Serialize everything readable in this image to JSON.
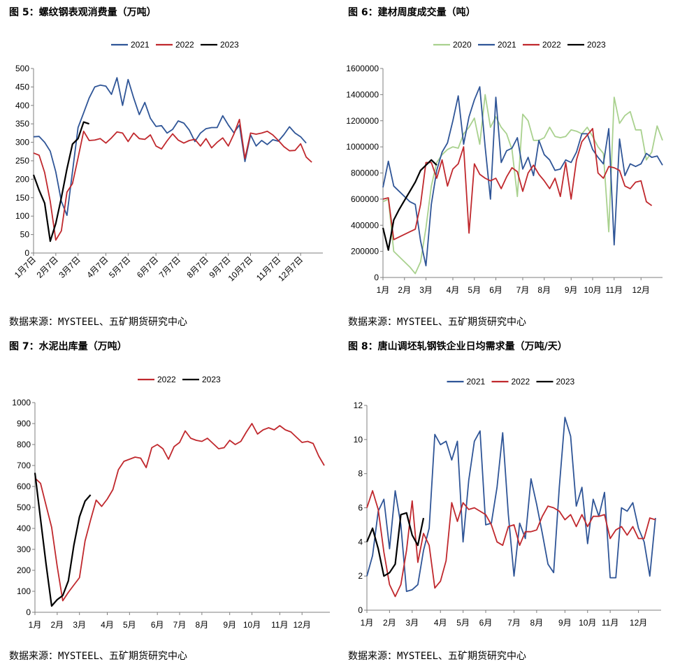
{
  "panels": [
    {
      "title": "图 5：螺纹钢表观消费量（万吨）",
      "source": "数据来源：MYSTEEL、五矿期货研究中心"
    },
    {
      "title": "图 6：建材周度成交量（吨）",
      "source": "数据来源：MYSTEEL、五矿期货研究中心"
    },
    {
      "title": "图 7：水泥出库量（万吨）",
      "source": "数据来源：MYSTEEL、五矿期货研究中心"
    },
    {
      "title": "图 8：唐山调坯轧钢铁企业日均需求量（万吨/天）",
      "source": "数据来源：MYSTEEL、五矿期货研究中心"
    }
  ],
  "chart_data": [
    {
      "type": "line",
      "ylim": [
        0,
        500
      ],
      "yticks": [
        0,
        50,
        100,
        150,
        200,
        250,
        300,
        350,
        400,
        450,
        500
      ],
      "xlim": [
        1,
        53
      ],
      "xticks": [
        1,
        5,
        9,
        14,
        18,
        23,
        27,
        32,
        36,
        40,
        45,
        49
      ],
      "xticklabels": [
        "1月7日",
        "2月7日",
        "3月7日",
        "4月7日",
        "5月7日",
        "6月7日",
        "7月7日",
        "8月7日",
        "9月7日",
        "10月7日",
        "11月7日",
        "12月7日"
      ],
      "xtick_rotation": -45,
      "grid": false,
      "legend": "top-center",
      "series": [
        {
          "name": "2021",
          "color": "#2f5597",
          "values": [
            315,
            316,
            300,
            276,
            220,
            140,
            102,
            220,
            340,
            380,
            420,
            450,
            455,
            452,
            430,
            475,
            400,
            470,
            420,
            375,
            408,
            365,
            343,
            345,
            325,
            335,
            358,
            352,
            333,
            302,
            325,
            337,
            340,
            340,
            372,
            347,
            326,
            347,
            248,
            320,
            290,
            305,
            294,
            307,
            303,
            321,
            342,
            325,
            315,
            298
          ]
        },
        {
          "name": "2022",
          "color": "#c0282d",
          "values": [
            271,
            265,
            218,
            140,
            35,
            60,
            165,
            188,
            258,
            330,
            305,
            306,
            310,
            298,
            312,
            328,
            325,
            302,
            325,
            310,
            308,
            320,
            290,
            282,
            304,
            323,
            306,
            298,
            305,
            308,
            290,
            310,
            285,
            300,
            312,
            290,
            322,
            362,
            256,
            325,
            322,
            325,
            330,
            320,
            305,
            288,
            277,
            278,
            296,
            260,
            246
          ]
        },
        {
          "name": "2023",
          "color": "#000000",
          "values": [
            212,
            170,
            135,
            32,
            80,
            150,
            228,
            295,
            310,
            355,
            350
          ]
        }
      ]
    },
    {
      "type": "line",
      "ylim": [
        0,
        1600000
      ],
      "yticks": [
        0,
        200000,
        400000,
        600000,
        800000,
        1000000,
        1200000,
        1400000,
        1600000
      ],
      "xlim": [
        1,
        53
      ],
      "xticks": [
        1,
        5,
        9,
        14,
        18,
        22,
        27,
        31,
        36,
        40,
        44,
        49
      ],
      "xticklabels": [
        "1月",
        "2月",
        "3月",
        "4月",
        "5月",
        "6月",
        "7月",
        "8月",
        "9月",
        "10月",
        "11月",
        "12月"
      ],
      "grid": false,
      "legend": "top-center",
      "series": [
        {
          "name": "2020",
          "color": "#a9d18e",
          "values": [
            580,
            600,
            200,
            160,
            120,
            80,
            30,
            120,
            380,
            700,
            880,
            940,
            980,
            1000,
            990,
            1100,
            1150,
            1220,
            1020,
            1400,
            1150,
            1230,
            1150,
            1100,
            980,
            620,
            1250,
            1200,
            1050,
            1050,
            1070,
            1150,
            1080,
            1070,
            1080,
            1130,
            1120,
            1100,
            1150,
            1080,
            1000,
            950,
            350,
            1380,
            1180,
            1240,
            1270,
            1130,
            1130,
            900,
            960,
            1160,
            1050
          ]
        },
        {
          "name": "2021",
          "color": "#2f5597",
          "values": [
            690,
            890,
            700,
            660,
            620,
            580,
            560,
            280,
            90,
            560,
            820,
            960,
            1030,
            1200,
            1390,
            1020,
            1230,
            1360,
            1460,
            1000,
            600,
            1380,
            880,
            970,
            990,
            1070,
            830,
            920,
            780,
            1050,
            940,
            900,
            820,
            830,
            900,
            880,
            960,
            1100,
            1100,
            980,
            920,
            870,
            1140,
            250,
            1060,
            780,
            870,
            850,
            870,
            950,
            920,
            930,
            860
          ]
        },
        {
          "name": "2022",
          "color": "#c0282d",
          "values": [
            600,
            610,
            290,
            310,
            330,
            350,
            370,
            560,
            880,
            880,
            760,
            900,
            700,
            830,
            870,
            1000,
            340,
            870,
            790,
            760,
            740,
            760,
            680,
            770,
            840,
            810,
            660,
            800,
            860,
            790,
            740,
            680,
            760,
            620,
            880,
            600,
            900,
            1040,
            1090,
            1140,
            800,
            760,
            850,
            840,
            820,
            700,
            680,
            730,
            740,
            580,
            550
          ]
        },
        {
          "name": "2023",
          "color": "#000000",
          "values": [
            380,
            210,
            440,
            520,
            590,
            660,
            730,
            820,
            860,
            900,
            860
          ]
        }
      ]
    },
    {
      "type": "line",
      "ylim": [
        0,
        1000
      ],
      "yticks": [
        0,
        100,
        200,
        300,
        400,
        500,
        600,
        700,
        800,
        900,
        1000
      ],
      "xlim": [
        1,
        54
      ],
      "xticks": [
        1,
        5,
        9,
        14,
        18,
        23,
        27,
        31,
        36,
        40,
        45,
        49
      ],
      "xticklabels": [
        "1月",
        "2月",
        "3月",
        "4月",
        "5月",
        "6月",
        "7月",
        "8月",
        "9月",
        "10月",
        "11月",
        "12月"
      ],
      "grid": false,
      "legend": "top-center",
      "series": [
        {
          "name": "2022",
          "color": "#c0282d",
          "values": [
            640,
            615,
            510,
            405,
            220,
            55,
            95,
            130,
            165,
            340,
            440,
            535,
            505,
            540,
            585,
            680,
            720,
            730,
            740,
            735,
            690,
            785,
            800,
            780,
            730,
            790,
            810,
            865,
            830,
            820,
            815,
            830,
            805,
            780,
            785,
            820,
            800,
            815,
            860,
            900,
            850,
            870,
            880,
            870,
            890,
            870,
            860,
            835,
            810,
            815,
            805,
            745,
            700
          ]
        },
        {
          "name": "2023",
          "color": "#000000",
          "values": [
            665,
            445,
            230,
            30,
            60,
            80,
            150,
            320,
            455,
            530,
            560
          ]
        }
      ]
    },
    {
      "type": "line",
      "ylim": [
        0,
        12
      ],
      "yticks": [
        0,
        2,
        4,
        6,
        8,
        10,
        12
      ],
      "xlim": [
        1,
        53
      ],
      "xticks": [
        1,
        5,
        9,
        14,
        18,
        22,
        27,
        31,
        36,
        40,
        44,
        49
      ],
      "xticklabels": [
        "1月",
        "2月",
        "3月",
        "4月",
        "5月",
        "6月",
        "7月",
        "8月",
        "9月",
        "10月",
        "11月",
        "12月"
      ],
      "grid": false,
      "legend": "top-center",
      "series": [
        {
          "name": "2021",
          "color": "#2f5597",
          "values": [
            2.0,
            3.2,
            5.8,
            6.5,
            3.6,
            7.0,
            5.0,
            1.1,
            1.2,
            1.5,
            3.5,
            4.8,
            10.3,
            9.7,
            9.9,
            8.8,
            9.9,
            4.0,
            7.6,
            9.9,
            10.5,
            5.0,
            5.1,
            7.2,
            10.4,
            5.6,
            2.0,
            5.1,
            4.2,
            7.7,
            6.2,
            4.5,
            2.7,
            2.2,
            7.2,
            11.3,
            10.2,
            6.1,
            7.2,
            3.9,
            6.5,
            5.5,
            6.9,
            1.9,
            1.9,
            6.0,
            5.8,
            6.3,
            4.8,
            4.0,
            2.0,
            5.4
          ]
        },
        {
          "name": "2022",
          "color": "#c0282d",
          "values": [
            6.0,
            7.0,
            5.9,
            3.4,
            1.5,
            0.8,
            1.5,
            3.5,
            6.4,
            2.8,
            4.5,
            3.8,
            1.3,
            1.7,
            2.9,
            6.3,
            5.2,
            6.3,
            5.9,
            6.0,
            5.8,
            5.6,
            5.0,
            4.0,
            3.8,
            4.9,
            5.0,
            3.8,
            4.6,
            4.6,
            4.7,
            5.5,
            6.1,
            6.0,
            5.8,
            5.3,
            5.6,
            4.9,
            5.6,
            4.9,
            5.5,
            5.5,
            5.6,
            4.2,
            4.7,
            4.9,
            4.4,
            4.9,
            4.2,
            4.2,
            5.4,
            5.3
          ]
        },
        {
          "name": "2023",
          "color": "#000000",
          "values": [
            4.0,
            4.8,
            3.6,
            2.0,
            2.2,
            2.7,
            5.6,
            5.7,
            4.4,
            3.8,
            5.4
          ]
        }
      ]
    }
  ]
}
